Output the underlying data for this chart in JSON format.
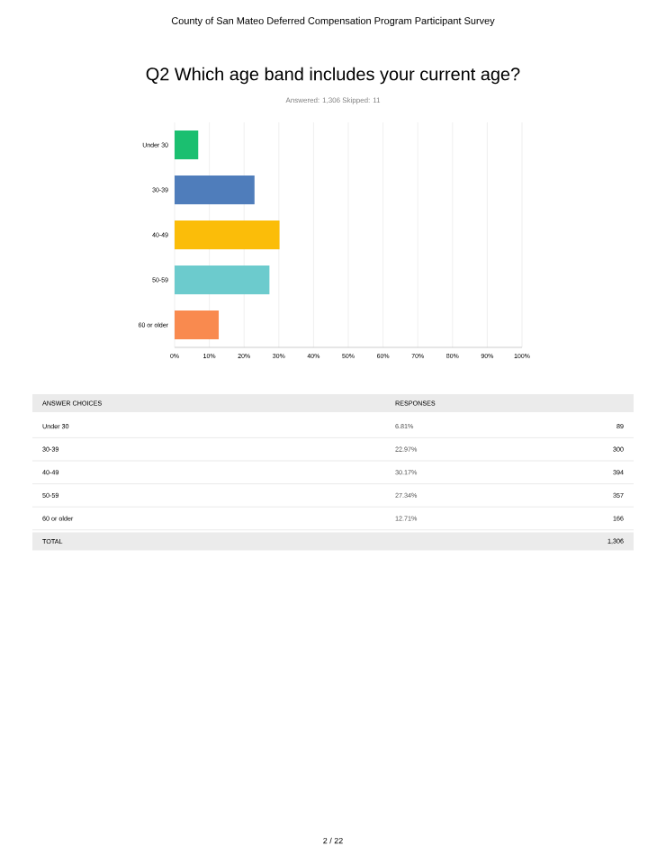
{
  "chart_data": {
    "type": "bar",
    "orientation": "horizontal",
    "title": "Q2 Which age band includes your current age?",
    "subtitle": "Answered: 1,306    Skipped: 11",
    "categories": [
      "Under 30",
      "30-39",
      "40-49",
      "50-59",
      "60 or older"
    ],
    "values": [
      6.8,
      23.0,
      30.2,
      27.3,
      12.7
    ],
    "colors": [
      "#1bbf70",
      "#4f7dbb",
      "#fbbd09",
      "#6ccbcd",
      "#f98a4f"
    ],
    "xlim": [
      0,
      100
    ],
    "xticks": [
      {
        "value": 0,
        "label": "0%"
      },
      {
        "value": 10,
        "label": "10%"
      },
      {
        "value": 20,
        "label": "20%"
      },
      {
        "value": 30,
        "label": "30%"
      },
      {
        "value": 40,
        "label": "40%"
      },
      {
        "value": 50,
        "label": "50%"
      },
      {
        "value": 60,
        "label": "60%"
      },
      {
        "value": 70,
        "label": "70%"
      },
      {
        "value": 80,
        "label": "80%"
      },
      {
        "value": 90,
        "label": "90%"
      },
      {
        "value": 100,
        "label": "100%"
      }
    ],
    "grid": "x",
    "annotations": [
      "County of San Mateo Deferred Compensation Program Participant Survey",
      "ANSWER CHOICES",
      "RESPONSES",
      "6.81%",
      "89",
      "22.97%",
      "300",
      "30.17%",
      "394",
      "27.34%",
      "357",
      "12.71%",
      "166",
      "TOTAL",
      "1,306",
      "2 / 22"
    ]
  }
}
